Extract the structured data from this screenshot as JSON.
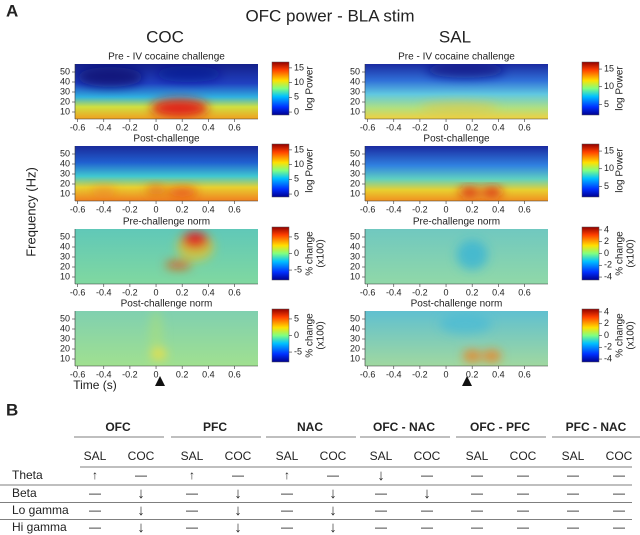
{
  "panel_a": {
    "label": "A",
    "title": "OFC power - BLA stim",
    "y_label": "Frequency (Hz)",
    "x_label": "Time (s)",
    "xlim": [
      -0.62,
      0.78
    ],
    "xticks": [
      -0.6,
      -0.4,
      -0.2,
      0,
      0.2,
      0.4,
      0.6
    ],
    "ylim": [
      3,
      58
    ],
    "yticks": [
      10,
      20,
      30,
      40,
      50
    ],
    "columns": [
      {
        "name": "COC",
        "plots": [
          {
            "title": "Pre - IV cocaine challenge",
            "colorbar": {
              "label": [
                "log Power"
              ],
              "lim": [
                -1,
                17
              ],
              "ticks": [
                0,
                5,
                10,
                15
              ]
            }
          },
          {
            "title": "Post-challenge",
            "colorbar": {
              "label": [
                "log Power"
              ],
              "lim": [
                -1,
                17
              ],
              "ticks": [
                0,
                5,
                10,
                15
              ]
            }
          },
          {
            "title": "Pre-challenge norm",
            "colorbar": {
              "label": [
                "% change",
                "(x100)"
              ],
              "lim": [
                -8,
                8
              ],
              "ticks": [
                5,
                0,
                -5
              ]
            }
          },
          {
            "title": "Post-challenge norm",
            "colorbar": {
              "label": [
                "% change",
                "(x100)"
              ],
              "lim": [
                -8,
                8
              ],
              "ticks": [
                5,
                0,
                -5
              ]
            }
          }
        ]
      },
      {
        "name": "SAL",
        "plots": [
          {
            "title": "Pre - IV cocaine challenge",
            "colorbar": {
              "label": [
                "log Power"
              ],
              "lim": [
                2,
                17
              ],
              "ticks": [
                5,
                10,
                15
              ]
            }
          },
          {
            "title": "Post-challenge",
            "colorbar": {
              "label": [
                "log Power"
              ],
              "lim": [
                2,
                17
              ],
              "ticks": [
                5,
                10,
                15
              ]
            }
          },
          {
            "title": "Pre-challenge norm",
            "colorbar": {
              "label": [
                "% change",
                "(x100)"
              ],
              "lim": [
                -4.5,
                4.5
              ],
              "ticks": [
                4,
                2,
                0,
                -2,
                -4
              ]
            }
          },
          {
            "title": "Post-challenge norm",
            "colorbar": {
              "label": [
                "% change",
                "(x100)"
              ],
              "lim": [
                -4.5,
                4.5
              ],
              "ticks": [
                4,
                2,
                0,
                -2,
                -4
              ]
            }
          }
        ]
      }
    ]
  },
  "panel_b": {
    "label": "B",
    "groups": [
      "OFC",
      "PFC",
      "NAC",
      "OFC - NAC",
      "OFC - PFC",
      "PFC - NAC"
    ],
    "subheaders": [
      "SAL",
      "COC",
      "SAL",
      "COC",
      "SAL",
      "COC",
      "SAL",
      "COC",
      "SAL",
      "COC",
      "SAL",
      "COC"
    ],
    "rows": [
      {
        "label": "Theta",
        "cells": [
          "↑",
          "—",
          "↑",
          "—",
          "↑",
          "—",
          "↓",
          "—",
          "—",
          "—",
          "—",
          "—"
        ]
      },
      {
        "label": "Beta",
        "cells": [
          "—",
          "↓",
          "—",
          "↓",
          "—",
          "↓",
          "—",
          "↓",
          "—",
          "—",
          "—",
          "—"
        ]
      },
      {
        "label": "Lo gamma",
        "cells": [
          "—",
          "↓",
          "—",
          "↓",
          "—",
          "↓",
          "—",
          "—",
          "—",
          "—",
          "—",
          "—"
        ]
      },
      {
        "label": "Hi gamma",
        "cells": [
          "—",
          "↓",
          "—",
          "↓",
          "—",
          "↓",
          "—",
          "—",
          "—",
          "—",
          "—",
          "—"
        ]
      }
    ]
  }
}
